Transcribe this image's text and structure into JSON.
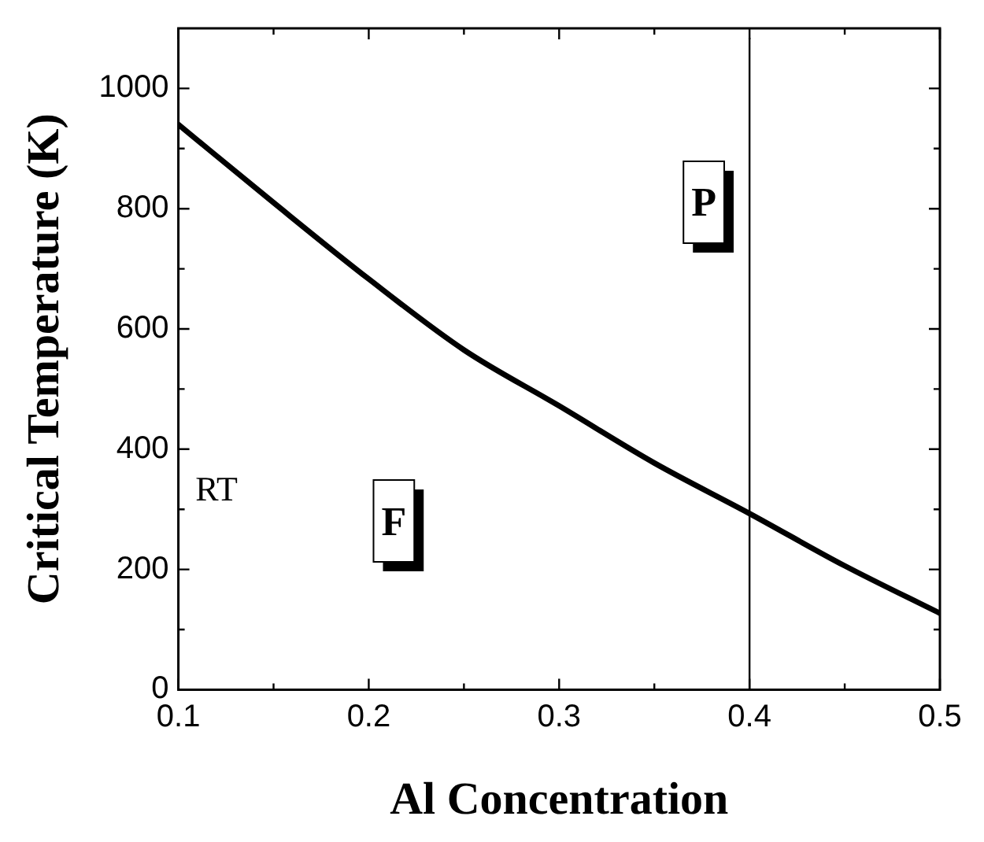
{
  "chart_data": {
    "type": "line",
    "xlabel": "Al Concentration",
    "ylabel": "Critical Temperature (K)",
    "x": [
      0.1,
      0.15,
      0.2,
      0.25,
      0.3,
      0.35,
      0.4,
      0.45,
      0.5
    ],
    "series": [
      {
        "color": "#000000",
        "values": [
          940,
          810,
          683,
          565,
          472,
          377,
          293,
          206,
          127
        ]
      }
    ],
    "xlim": [
      0.1,
      0.5
    ],
    "xticks": [
      0.1,
      {
        "value": 0.15,
        "label": null
      },
      0.2,
      {
        "value": 0.25,
        "label": null
      },
      0.3,
      {
        "value": 0.35,
        "label": null
      },
      0.4,
      {
        "value": 0.45,
        "label": null
      },
      0.5
    ],
    "ylim": [
      0,
      1100
    ],
    "yticks": [
      0,
      {
        "value": 100,
        "label": null
      },
      200,
      {
        "value": 300,
        "label": null
      },
      400,
      {
        "value": 500,
        "label": null
      },
      600,
      {
        "value": 700,
        "label": null
      },
      800,
      {
        "value": 900,
        "label": null
      },
      1000
    ],
    "ref_lines": [
      {
        "axis": "x",
        "value": 0.4,
        "color": "#000000"
      }
    ],
    "annotations": [
      "RT",
      "P",
      "F"
    ],
    "grid": false,
    "legend": false,
    "marker": "none",
    "line_style": "solid"
  }
}
